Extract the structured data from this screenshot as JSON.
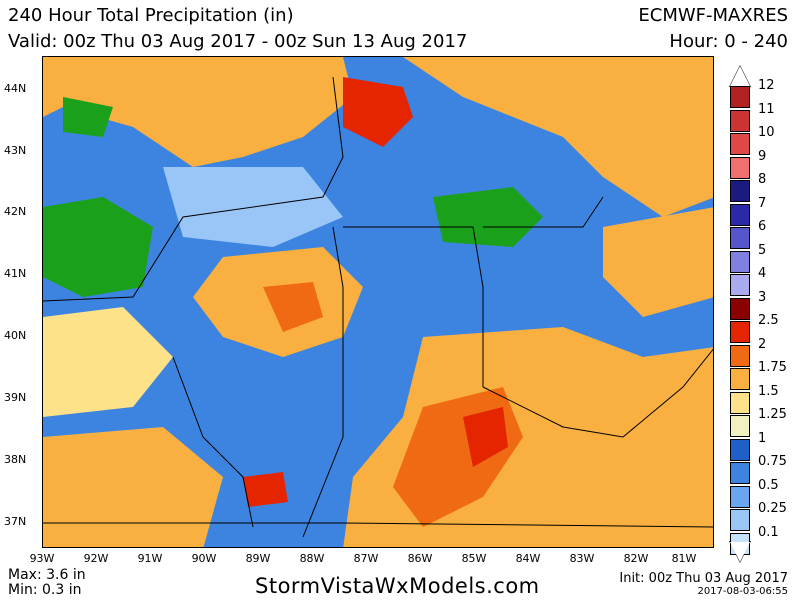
{
  "header": {
    "title": "240 Hour Total Precipitation (in)",
    "valid": "Valid: 00z Thu 03 Aug 2017 - 00z Sun 13 Aug 2017",
    "model": "ECMWF-MAXRES",
    "hours": "Hour: 0 - 240"
  },
  "lat_labels": [
    "44N",
    "43N",
    "42N",
    "41N",
    "40N",
    "39N",
    "38N",
    "37N"
  ],
  "lon_labels": [
    "93W",
    "92W",
    "91W",
    "90W",
    "89W",
    "88W",
    "87W",
    "86W",
    "85W",
    "84W",
    "83W",
    "82W",
    "81W"
  ],
  "legend": {
    "labels": [
      "12",
      "11",
      "10",
      "9",
      "8",
      "7",
      "6",
      "5",
      "4",
      "3",
      "2.5",
      "2",
      "1.75",
      "1.5",
      "1.25",
      "1",
      "0.75",
      "0.5",
      "0.25",
      "0.1"
    ],
    "colors": [
      "#b22222",
      "#cc3333",
      "#e04848",
      "#f07070",
      "#1a1a80",
      "#2a2aa8",
      "#5555cc",
      "#8080e0",
      "#aaaaf0",
      "#8b0000",
      "#e52400",
      "#f06a14",
      "#f9b040",
      "#fde28a",
      "#f0f0c0",
      "#1e5fc8",
      "#3d84e0",
      "#6aa6ef",
      "#9ac6f7",
      "#c6e2fb"
    ]
  },
  "stats": {
    "max": "Max: 3.6 in",
    "min": "Min: 0.3 in"
  },
  "footer": {
    "site": "StormVistaWxModels.com",
    "init": "Init: 00z Thu 03 Aug 2017",
    "stamp": "2017-08-03-06:55"
  }
}
